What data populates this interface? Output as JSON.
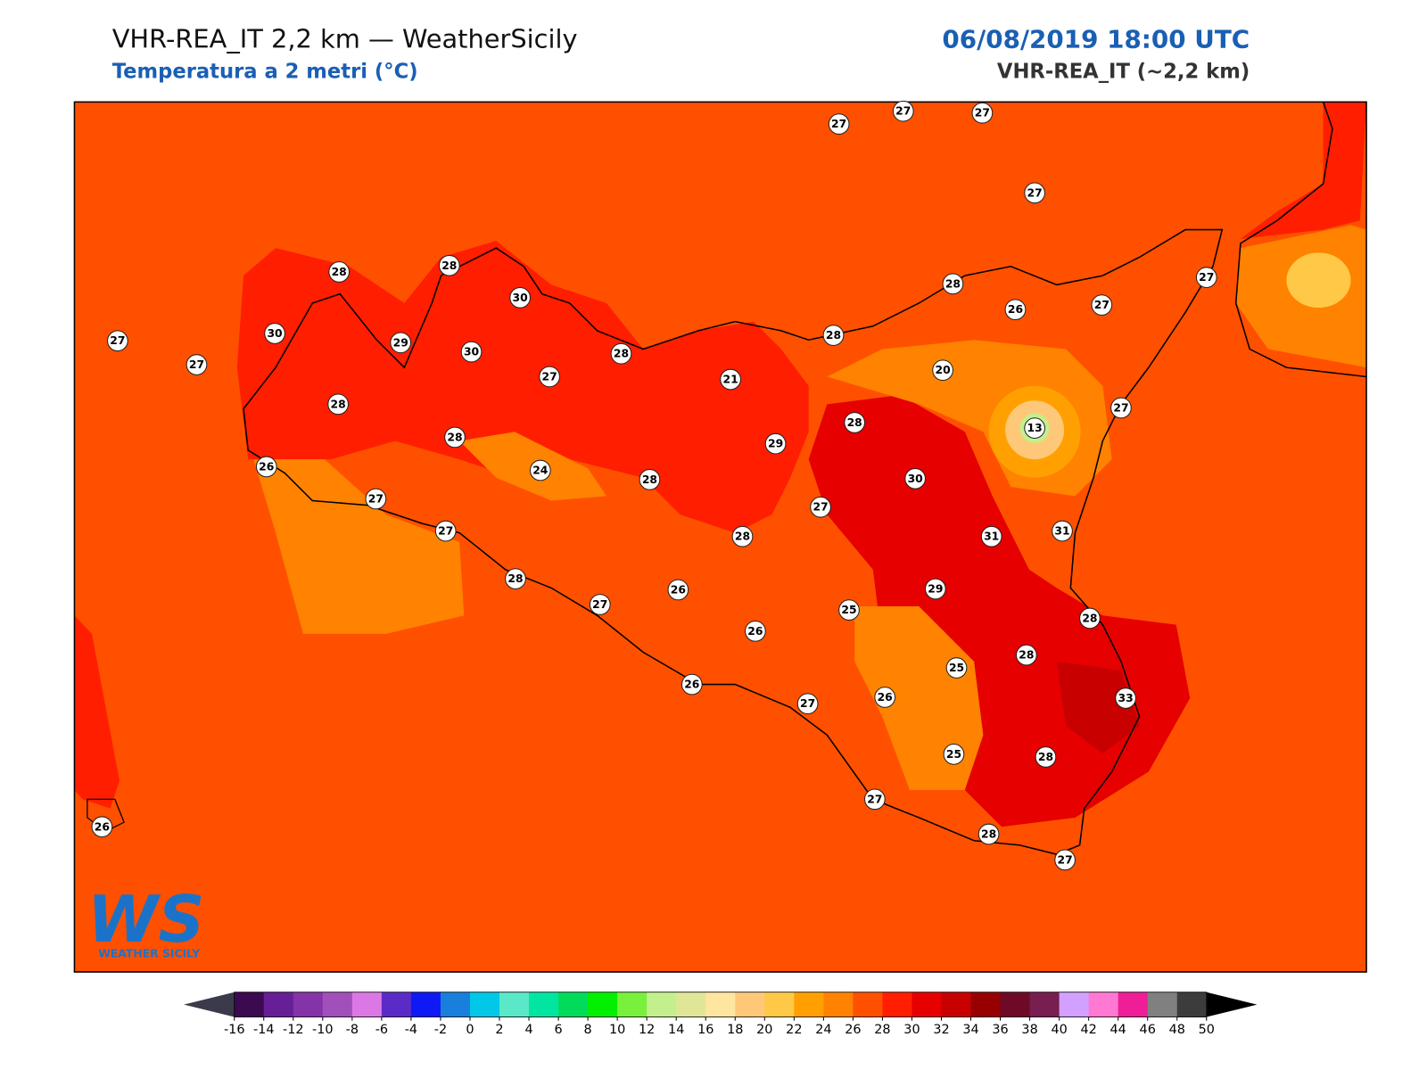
{
  "header": {
    "title": "VHR-REA_IT 2,2 km — WeatherSicily",
    "subtitle": "Temperatura a 2 metri (°C)",
    "datetime": "06/08/2019 18:00 UTC",
    "model": "VHR-REA_IT (~2,2 km)"
  },
  "map": {
    "background_color": "#ff5000",
    "stations": [
      27,
      27,
      27,
      27,
      27,
      27,
      28,
      28,
      30,
      30,
      29,
      30,
      27,
      28,
      28,
      28,
      26,
      27,
      24,
      27,
      28,
      27,
      28,
      21,
      29,
      28,
      28,
      26,
      27,
      27,
      20,
      28,
      13,
      27,
      30,
      27,
      28,
      31,
      31,
      29,
      26,
      25,
      26,
      28,
      25,
      28,
      26,
      27,
      26,
      33,
      25,
      28,
      27,
      28,
      27,
      26
    ]
  },
  "logo": {
    "letters": "WS",
    "text": "WEATHER SICILY"
  },
  "colorbar": {
    "ticks": [
      -16,
      -14,
      -12,
      -10,
      -8,
      -6,
      -4,
      -2,
      0,
      2,
      4,
      6,
      8,
      10,
      12,
      14,
      16,
      18,
      20,
      22,
      24,
      26,
      28,
      30,
      32,
      34,
      36,
      38,
      40,
      42,
      44,
      46,
      48,
      50
    ],
    "colors": [
      "#3c0a50",
      "#661f96",
      "#8533a8",
      "#a150bb",
      "#dc78e6",
      "#5b2bc8",
      "#0f19f5",
      "#1880dc",
      "#00c8e6",
      "#5ae8c8",
      "#00e6a0",
      "#00dc5a",
      "#00f000",
      "#78f03c",
      "#c3f08c",
      "#e1e696",
      "#ffe6a0",
      "#ffc878",
      "#ffc846",
      "#ffa000",
      "#ff8200",
      "#ff5000",
      "#ff1e00",
      "#e60000",
      "#c80000",
      "#960000",
      "#6e0a28",
      "#781e50",
      "#d2a0ff",
      "#ff78d2",
      "#f01e96",
      "#808080",
      "#3c3c3c"
    ],
    "under_color": "#3a3a4a",
    "over_color": "#000000"
  }
}
